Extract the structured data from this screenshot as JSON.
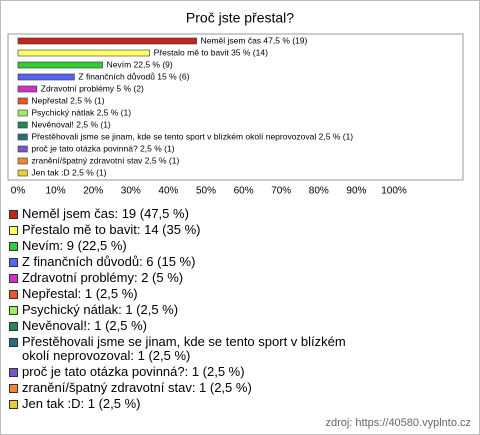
{
  "chart_data": {
    "type": "bar",
    "orientation": "horizontal",
    "title": "Proč jste přestal?",
    "values": [
      47.5,
      35,
      22.5,
      15,
      5,
      2.5,
      2.5,
      2.5,
      2.5,
      2.5,
      2.5,
      2.5
    ],
    "value_labels": [
      "Neměl jsem čas 47,5 % (19)",
      "Přestalo mě to bavit 35 % (14)",
      "Nevím 22,5 % (9)",
      "Z finančních důvodů 15 % (6)",
      "Zdravotní problémy 5 % (2)",
      "Nepřestal 2,5 % (1)",
      "Psychický nátlak 2,5 % (1)",
      "Nevěnoval! 2,5 % (1)",
      "Přestěhovali jsme se jinam, kde se tento sport v blízkém okolí neprovozoval 2,5 % (1)",
      "proč je tato otázka povinná? 2,5 % (1)",
      "zranění/špatný zdravotní stav 2,5 % (1)",
      "Jen tak :D 2,5 % (1)"
    ],
    "colors": [
      "#c0281e",
      "#ffff66",
      "#33cc33",
      "#5566ee",
      "#cc33cc",
      "#ee5522",
      "#99ee66",
      "#228855",
      "#2a6e7e",
      "#7755cc",
      "#ee8833",
      "#eecc33"
    ],
    "xlim": [
      0,
      100
    ],
    "xticks": [
      {
        "value": 0,
        "label": "0%"
      },
      {
        "value": 10,
        "label": "10%"
      },
      {
        "value": 20,
        "label": "20%"
      },
      {
        "value": 30,
        "label": "30%"
      },
      {
        "value": 40,
        "label": "40%"
      },
      {
        "value": 50,
        "label": "50%"
      },
      {
        "value": 60,
        "label": "60%"
      },
      {
        "value": 70,
        "label": "70%"
      },
      {
        "value": 80,
        "label": "80%"
      },
      {
        "value": 90,
        "label": "90%"
      },
      {
        "value": 100,
        "label": "100%"
      }
    ],
    "grid": false,
    "legend": [
      "Neměl jsem čas: 19 (47,5 %)",
      "Přestalo mě to bavit: 14 (35 %)",
      "Nevím: 9 (22,5 %)",
      "Z finančních důvodů: 6 (15 %)",
      "Zdravotní problémy: 2 (5 %)",
      "Nepřestal: 1 (2,5 %)",
      "Psychický nátlak: 1 (2,5 %)",
      "Nevěnoval!: 1 (2,5 %)",
      "Přestěhovali jsme se jinam, kde se tento sport v blízkém okolí neprovozoval: 1 (2,5 %)",
      "proč je tato otázka povinná?: 1 (2,5 %)",
      "zranění/špatný zdravotní stav: 1 (2,5 %)",
      "Jen tak :D: 1 (2,5 %)"
    ],
    "source": "zdroj: https://40580.vyplnto.cz"
  }
}
